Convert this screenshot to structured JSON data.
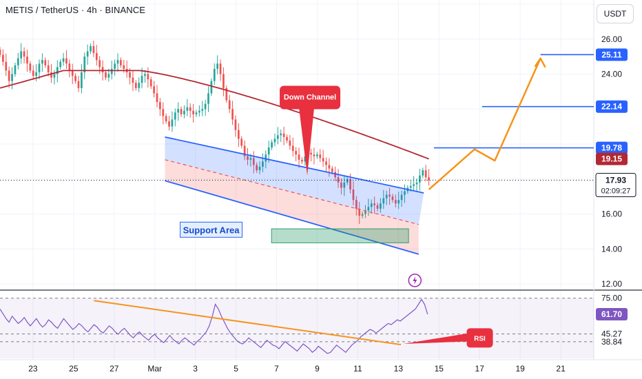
{
  "header": {
    "symbol": "METIS / TetherUS",
    "interval": "4h",
    "exchange": "BINANCE",
    "separator": " · ",
    "currency_button": "USDT"
  },
  "colors": {
    "up": "#26a69a",
    "down": "#ef5350",
    "ma": "#b22833",
    "channel": "#2962ff",
    "projection": "#f7931a",
    "rsi": "#7e57c2",
    "support": "#2e9e6b",
    "callout": "#e8303f"
  },
  "annotations": {
    "down_channel": "Down Channel",
    "support_area": "Support Area",
    "rsi_callout": "RSI",
    "lightning_icon": "lightning-icon"
  },
  "price_badges": {
    "target_top": "25.11",
    "target_mid": "22.14",
    "target_low": "19.78",
    "ma_value": "19.15",
    "last_price": "17.93",
    "countdown": "02:09:27",
    "rsi_value": "61.70"
  },
  "chart_data": [
    {
      "type": "candlestick",
      "title": "METIS / TetherUS · 4h · BINANCE",
      "ylim": [
        12,
        28
      ],
      "y_ticks": [
        "26.00",
        "24.00",
        "16.00",
        "14.00",
        "12.00"
      ],
      "x_tick_labels": [
        "23",
        "25",
        "27",
        "Mar",
        "3",
        "5",
        "7",
        "9",
        "11",
        "13",
        "15",
        "17",
        "19",
        "21"
      ],
      "close_series": [
        25.1,
        24.7,
        24.2,
        23.6,
        24.0,
        24.5,
        24.9,
        25.3,
        25.0,
        24.6,
        24.2,
        23.9,
        24.1,
        24.6,
        24.8,
        24.5,
        24.1,
        23.8,
        24.0,
        24.4,
        24.7,
        24.9,
        24.6,
        24.2,
        23.9,
        23.6,
        23.2,
        24.1,
        25.0,
        25.3,
        25.6,
        25.2,
        24.8,
        24.4,
        24.1,
        23.8,
        24.0,
        24.3,
        24.6,
        24.8,
        24.5,
        24.3,
        24.1,
        23.8,
        23.5,
        23.2,
        23.5,
        23.9,
        24.0,
        23.7,
        23.3,
        22.9,
        22.4,
        22.0,
        21.6,
        21.3,
        21.0,
        21.4,
        21.8,
        22.0,
        21.7,
        21.9,
        22.1,
        21.9,
        21.7,
        21.8,
        21.9,
        22.0,
        22.3,
        22.9,
        23.6,
        24.3,
        24.6,
        24.0,
        23.2,
        22.5,
        22.0,
        21.4,
        20.8,
        20.3,
        19.9,
        19.3,
        19.1,
        19.2,
        18.8,
        18.5,
        18.7,
        19.0,
        19.4,
        19.8,
        20.1,
        20.3,
        20.5,
        20.6,
        20.4,
        20.2,
        19.9,
        19.6,
        19.4,
        19.1,
        19.0,
        19.3,
        19.5,
        19.4,
        19.3,
        19.4,
        19.2,
        19.0,
        18.8,
        18.6,
        18.4,
        18.1,
        17.8,
        17.5,
        17.8,
        18.0,
        17.4,
        16.8,
        16.3,
        15.9,
        16.0,
        16.2,
        16.4,
        16.6,
        16.5,
        16.3,
        16.6,
        16.9,
        17.1,
        17.0,
        16.8,
        16.6,
        16.8,
        17.1,
        17.3,
        17.5,
        17.6,
        17.7,
        17.8,
        18.2,
        18.5,
        18.1,
        17.93
      ],
      "moving_average": {
        "start": 23.2,
        "plateau": 24.2,
        "end": 19.15
      },
      "down_channel": {
        "upper": [
          [
            6.0,
            20.4
          ],
          [
            16.2,
            17.2
          ]
        ],
        "lower": [
          [
            6.0,
            17.9
          ],
          [
            16.0,
            13.7
          ]
        ],
        "mid": [
          [
            6.0,
            19.1
          ],
          [
            16.0,
            15.4
          ]
        ]
      },
      "support_area": {
        "low": 14.35,
        "high": 15.15
      },
      "horizontal_levels": [
        25.11,
        22.14,
        19.78
      ],
      "projection_path": [
        [
          16.4,
          17.4
        ],
        [
          18.2,
          19.7
        ],
        [
          19.0,
          19.05
        ],
        [
          20.8,
          24.9
        ]
      ],
      "last_price": 17.93
    },
    {
      "type": "line",
      "name": "RSI",
      "ylim": [
        25,
        80
      ],
      "y_ticks": [
        "75.00",
        "45.27",
        "38.84"
      ],
      "levels": [
        75,
        45.27,
        38.84
      ],
      "trendline": [
        [
          3.2,
          73.0
        ],
        [
          15.3,
          36.4
        ]
      ],
      "values": [
        66,
        62,
        58,
        55,
        60,
        57,
        54,
        56,
        59,
        55,
        52,
        55,
        58,
        54,
        51,
        53,
        57,
        55,
        52,
        50,
        54,
        58,
        55,
        52,
        49,
        51,
        54,
        52,
        49,
        47,
        50,
        53,
        51,
        48,
        46,
        49,
        52,
        50,
        47,
        45,
        48,
        50,
        47,
        44,
        42,
        45,
        47,
        44,
        42,
        40,
        43,
        45,
        42,
        40,
        38,
        41,
        44,
        41,
        39,
        37,
        40,
        42,
        40,
        38,
        36,
        39,
        41,
        44,
        47,
        52,
        60,
        70,
        66,
        60,
        55,
        50,
        46,
        43,
        40,
        38,
        37,
        39,
        42,
        40,
        38,
        36,
        34,
        37,
        40,
        38,
        36,
        35,
        33,
        36,
        39,
        37,
        35,
        33,
        31,
        34,
        37,
        35,
        33,
        30,
        32,
        35,
        33,
        31,
        29,
        30,
        33,
        36,
        34,
        32,
        30,
        33,
        36,
        38,
        40,
        43,
        45,
        47,
        49,
        48,
        46,
        48,
        50,
        52,
        54,
        53,
        55,
        57,
        56,
        58,
        60,
        62,
        64,
        66,
        70,
        74,
        70,
        61.7
      ]
    }
  ]
}
